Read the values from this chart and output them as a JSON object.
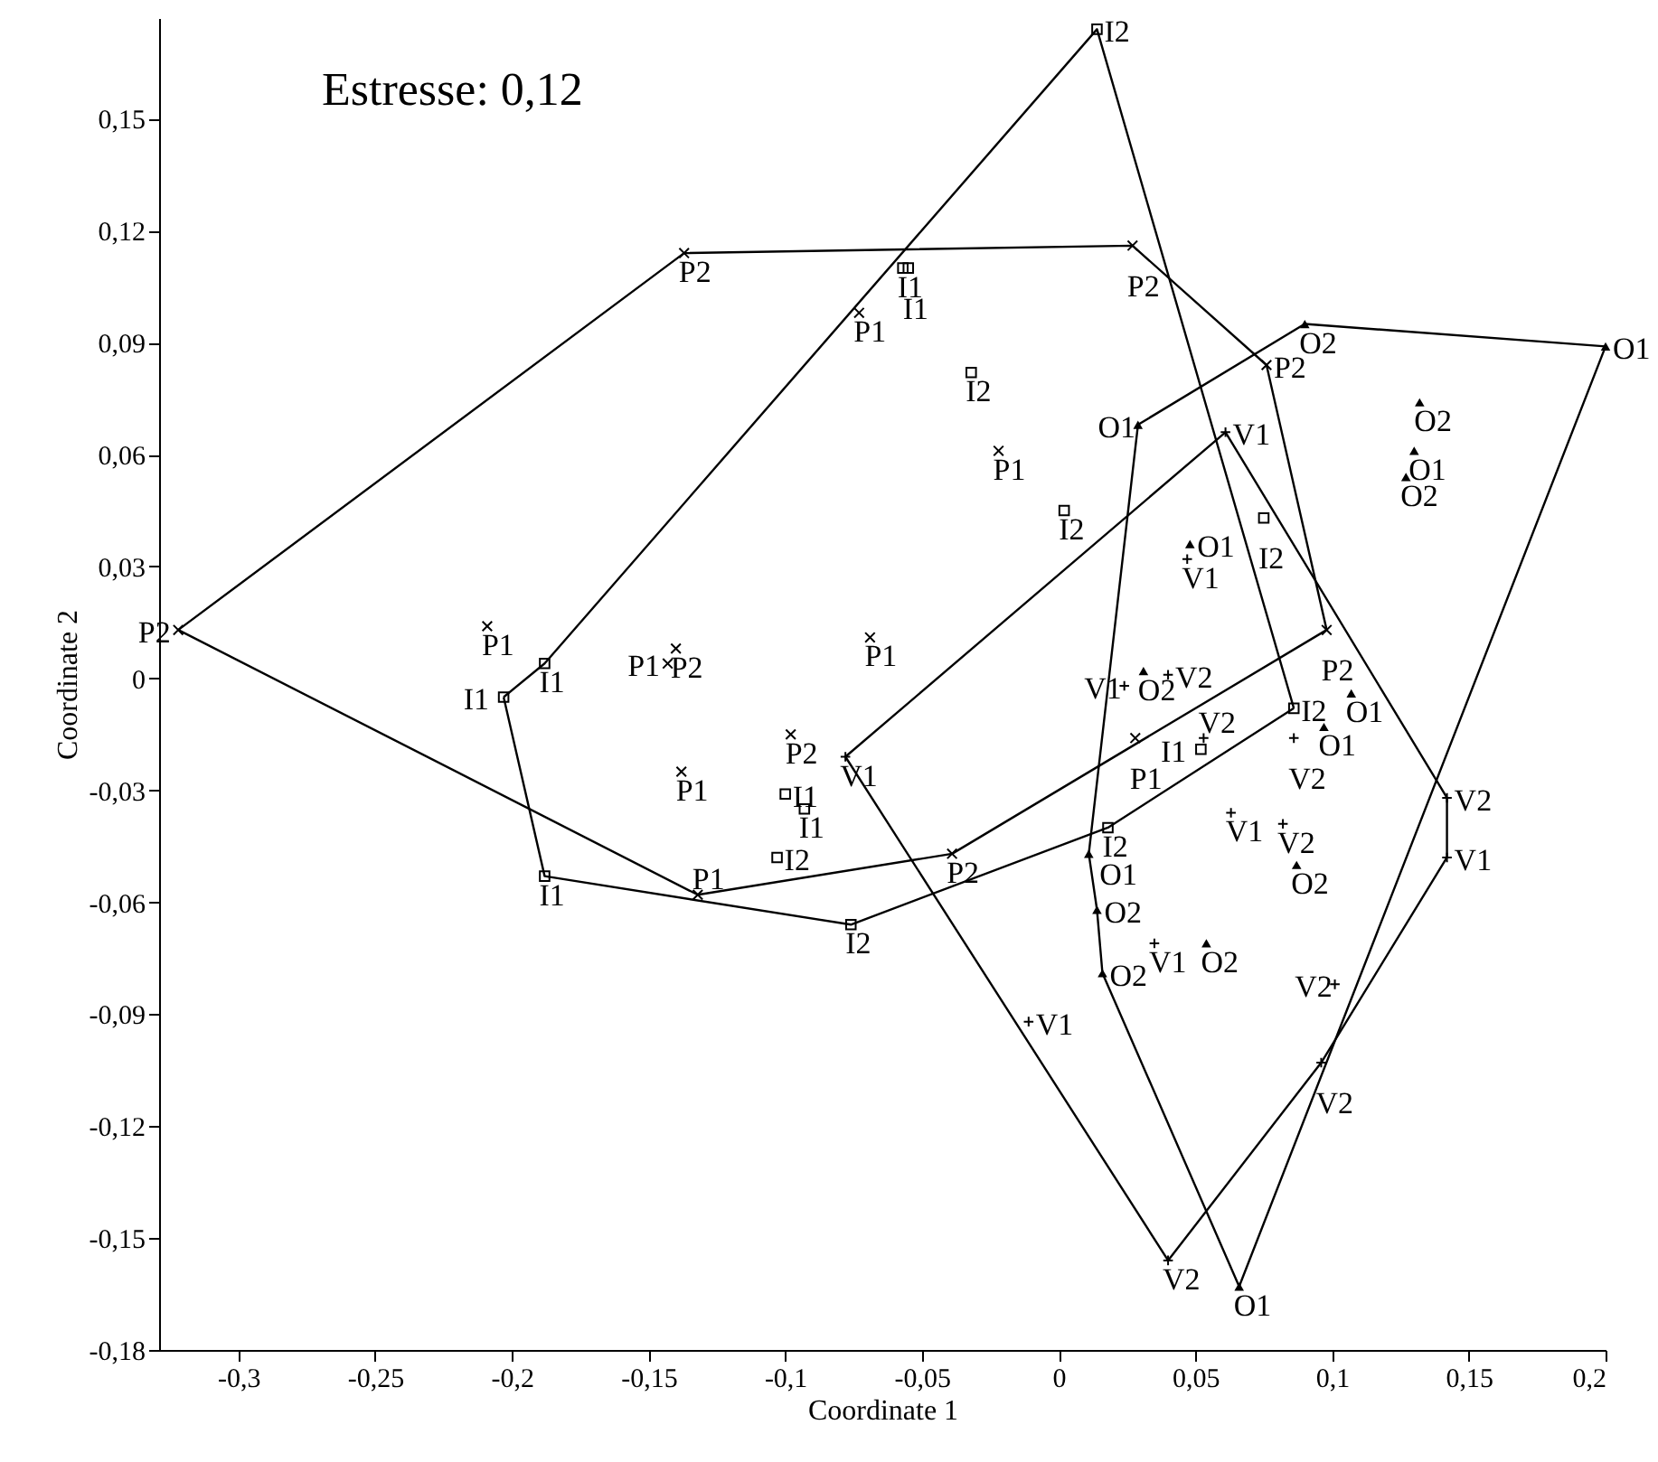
{
  "chart_data": {
    "type": "scatter",
    "xlabel": "Coordinate 1",
    "ylabel": "Coordinate 2",
    "annotations": [
      "Estresse: 0,12"
    ],
    "xlim": [
      -0.329,
      0.2
    ],
    "ylim": [
      -0.18,
      0.177
    ],
    "xticks": [
      {
        "value": -0.3,
        "label": "-0,3"
      },
      {
        "value": -0.25,
        "label": "-0,25"
      },
      {
        "value": -0.2,
        "label": "-0,2"
      },
      {
        "value": -0.15,
        "label": "-0,15"
      },
      {
        "value": -0.1,
        "label": "-0,1"
      },
      {
        "value": -0.05,
        "label": "-0,05"
      },
      {
        "value": 0,
        "label": "0"
      },
      {
        "value": 0.05,
        "label": "0,05"
      },
      {
        "value": 0.1,
        "label": "0,1"
      },
      {
        "value": 0.15,
        "label": "0,15"
      },
      {
        "value": 0.2,
        "label": "0,2"
      }
    ],
    "yticks": [
      {
        "value": -0.18,
        "label": "-0,18"
      },
      {
        "value": -0.15,
        "label": "-0,15"
      },
      {
        "value": -0.12,
        "label": "-0,12"
      },
      {
        "value": -0.09,
        "label": "-0,09"
      },
      {
        "value": -0.06,
        "label": "-0,06"
      },
      {
        "value": -0.03,
        "label": "-0,03"
      },
      {
        "value": 0,
        "label": "0"
      },
      {
        "value": 0.03,
        "label": "0,03"
      },
      {
        "value": 0.06,
        "label": "0,06"
      },
      {
        "value": 0.09,
        "label": "0,09"
      },
      {
        "value": 0.12,
        "label": "0,12"
      },
      {
        "value": 0.15,
        "label": "0,15"
      }
    ],
    "grid": false,
    "series": [
      {
        "marker": "cross",
        "color": "#000000",
        "x": [
          -0.322,
          -0.137,
          0.027,
          0.076,
          0.098,
          -0.039,
          -0.14,
          -0.098,
          -0.132,
          -0.209,
          -0.073,
          -0.022,
          -0.143,
          -0.069,
          -0.138,
          0.028
        ],
        "values": [
          0.013,
          0.114,
          0.116,
          0.084,
          0.013,
          -0.047,
          0.008,
          -0.015,
          -0.058,
          0.014,
          0.098,
          0.061,
          0.004,
          0.011,
          -0.025,
          -0.016
        ],
        "value_labels": [
          "P2",
          "P2",
          "P2",
          "P2",
          "P2",
          "P2",
          "P2",
          "P2",
          "P1",
          "P1",
          "P1",
          "P1",
          "P1",
          "P1",
          "P1",
          "P1"
        ]
      },
      {
        "marker": "square",
        "color": "#000000",
        "x": [
          0.014,
          -0.032,
          0.002,
          0.075,
          0.086,
          -0.103,
          -0.076,
          0.018,
          -0.057,
          -0.055,
          -0.188,
          -0.203,
          -0.188,
          -0.1,
          -0.093,
          0.052
        ],
        "values": [
          0.174,
          0.082,
          0.045,
          0.043,
          -0.008,
          -0.048,
          -0.066,
          -0.04,
          0.11,
          0.11,
          0.004,
          -0.005,
          -0.053,
          -0.031,
          -0.035,
          -0.019
        ],
        "value_labels": [
          "I2",
          "I2",
          "I2",
          "I2",
          "I2",
          "I2",
          "I2",
          "I2",
          "I1",
          "I1",
          "I1",
          "I1",
          "I1",
          "I1",
          "I1",
          "I1"
        ]
      },
      {
        "marker": "triangle",
        "color": "#000000",
        "x": [
          0.09,
          0.132,
          0.127,
          0.031,
          0.014,
          0.016,
          0.054,
          0.087,
          0.2,
          0.029,
          0.13,
          0.048,
          0.107,
          0.097,
          0.011,
          0.066
        ],
        "values": [
          0.095,
          0.074,
          0.054,
          0.002,
          -0.062,
          -0.079,
          -0.071,
          -0.05,
          0.089,
          0.068,
          0.061,
          0.036,
          -0.004,
          -0.013,
          -0.047,
          -0.163
        ],
        "value_labels": [
          "O2",
          "O2",
          "O2",
          "O2",
          "O2",
          "O2",
          "O2",
          "O2",
          "O1",
          "O1",
          "O1",
          "O1",
          "O1",
          "O1",
          "O1",
          "O1"
        ]
      },
      {
        "marker": "plus",
        "color": "#000000",
        "x": [
          0.04,
          0.053,
          0.086,
          0.082,
          0.142,
          0.101,
          0.096,
          0.04,
          0.061,
          0.047,
          0.024,
          -0.078,
          0.063,
          0.142,
          0.035,
          -0.011
        ],
        "values": [
          0.001,
          -0.016,
          -0.016,
          -0.039,
          -0.032,
          -0.082,
          -0.103,
          -0.156,
          0.066,
          0.032,
          -0.002,
          -0.021,
          -0.036,
          -0.048,
          -0.071,
          -0.092
        ],
        "value_labels": [
          "V2",
          "V2",
          "V2",
          "V2",
          "V2",
          "V2",
          "V2",
          "V2",
          "V1",
          "V1",
          "V1",
          "V1",
          "V1",
          "V1",
          "V1",
          "V1"
        ]
      },
      {
        "type": "line",
        "color": "#000000",
        "x": [
          -0.322,
          -0.137,
          0.027,
          0.076,
          0.098
        ],
        "values": [
          0.013,
          0.114,
          0.116,
          0.084,
          0.013
        ]
      },
      {
        "type": "line",
        "color": "#000000",
        "x": [
          -0.322,
          -0.132,
          -0.039,
          0.098
        ],
        "values": [
          0.013,
          -0.058,
          -0.047,
          0.013
        ]
      },
      {
        "type": "line",
        "color": "#000000",
        "x": [
          -0.203,
          -0.188,
          0.014,
          0.086
        ],
        "values": [
          -0.005,
          0.004,
          0.174,
          -0.008
        ]
      },
      {
        "type": "line",
        "color": "#000000",
        "x": [
          -0.203,
          -0.188,
          -0.076,
          0.018,
          0.086
        ],
        "values": [
          -0.005,
          -0.053,
          -0.066,
          -0.04,
          -0.008
        ]
      },
      {
        "type": "line",
        "color": "#000000",
        "x": [
          0.011,
          0.029,
          0.09,
          0.2
        ],
        "values": [
          -0.047,
          0.068,
          0.095,
          0.089
        ]
      },
      {
        "type": "line",
        "color": "#000000",
        "x": [
          0.011,
          0.014,
          0.016,
          0.066,
          0.2
        ],
        "values": [
          -0.047,
          -0.062,
          -0.079,
          -0.163,
          0.089
        ]
      },
      {
        "type": "line",
        "color": "#000000",
        "x": [
          -0.078,
          0.061,
          0.142
        ],
        "values": [
          -0.021,
          0.066,
          -0.032
        ]
      },
      {
        "type": "line",
        "color": "#000000",
        "x": [
          -0.078,
          0.04,
          0.096,
          0.142,
          0.142
        ],
        "values": [
          -0.021,
          -0.156,
          -0.103,
          -0.048,
          -0.032
        ]
      }
    ]
  }
}
